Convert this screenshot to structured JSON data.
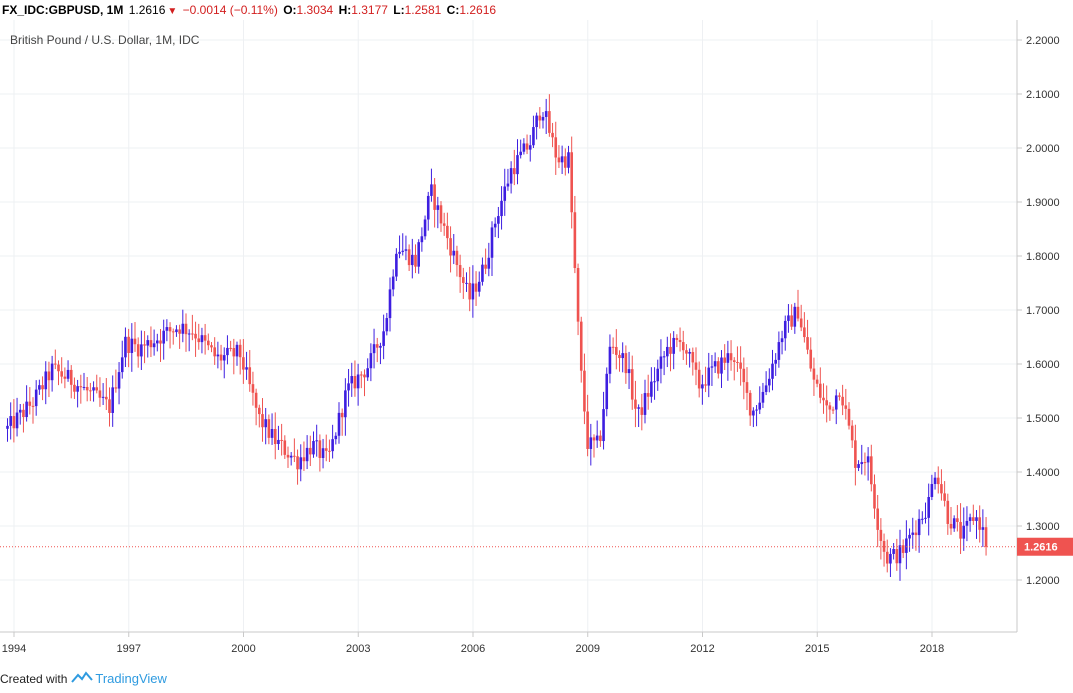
{
  "header": {
    "symbol": "FX_IDC:GBPUSD, 1M",
    "last": "1.2616",
    "change": "−0.0014 (−0.11%)",
    "open_label": "O:",
    "open": "1.3034",
    "high_label": "H:",
    "high": "1.3177",
    "low_label": "L:",
    "low": "1.2581",
    "close_label": "C:",
    "close": "1.2616"
  },
  "chart_data": {
    "type": "candlestick",
    "title": "British Pound / U.S. Dollar, 1M, IDC",
    "xlabel": "",
    "ylabel": "",
    "x_range": [
      1993.83,
      2019.42
    ],
    "ylim": [
      1.11,
      2.225
    ],
    "y_ticks": [
      "2.2000",
      "2.1000",
      "2.0000",
      "1.9000",
      "1.8000",
      "1.7000",
      "1.6000",
      "1.5000",
      "1.4000",
      "1.3000",
      "1.2000"
    ],
    "x_ticks": [
      "1994",
      "1997",
      "2000",
      "2003",
      "2006",
      "2009",
      "2012",
      "2015",
      "2018"
    ],
    "grid": true,
    "last_price": 1.2616,
    "last_price_label": "1.2616",
    "up_color": "#3d1ee0",
    "down_color": "#ef5350",
    "close_path": [
      [
        1993.83,
        1.48
      ],
      [
        1994.5,
        1.53
      ],
      [
        1995.0,
        1.59
      ],
      [
        1995.5,
        1.57
      ],
      [
        1995.9,
        1.55
      ],
      [
        1996.5,
        1.52
      ],
      [
        1996.9,
        1.64
      ],
      [
        1997.3,
        1.63
      ],
      [
        1997.8,
        1.65
      ],
      [
        1998.3,
        1.67
      ],
      [
        1998.7,
        1.66
      ],
      [
        1999.3,
        1.61
      ],
      [
        1999.9,
        1.62
      ],
      [
        2000.4,
        1.5
      ],
      [
        2000.8,
        1.46
      ],
      [
        2001.4,
        1.42
      ],
      [
        2001.8,
        1.45
      ],
      [
        2002.2,
        1.42
      ],
      [
        2002.7,
        1.55
      ],
      [
        2003.3,
        1.6
      ],
      [
        2003.7,
        1.67
      ],
      [
        2004.0,
        1.82
      ],
      [
        2004.5,
        1.79
      ],
      [
        2004.9,
        1.92
      ],
      [
        2005.4,
        1.82
      ],
      [
        2005.9,
        1.72
      ],
      [
        2006.3,
        1.78
      ],
      [
        2006.6,
        1.87
      ],
      [
        2007.0,
        1.96
      ],
      [
        2007.5,
        2.01
      ],
      [
        2007.8,
        2.08
      ],
      [
        2008.2,
        1.98
      ],
      [
        2008.5,
        1.98
      ],
      [
        2008.8,
        1.6
      ],
      [
        2009.0,
        1.45
      ],
      [
        2009.3,
        1.45
      ],
      [
        2009.6,
        1.64
      ],
      [
        2010.0,
        1.6
      ],
      [
        2010.3,
        1.5
      ],
      [
        2010.6,
        1.55
      ],
      [
        2011.1,
        1.63
      ],
      [
        2011.5,
        1.64
      ],
      [
        2011.9,
        1.56
      ],
      [
        2012.3,
        1.59
      ],
      [
        2012.8,
        1.62
      ],
      [
        2013.3,
        1.51
      ],
      [
        2013.6,
        1.55
      ],
      [
        2014.1,
        1.66
      ],
      [
        2014.5,
        1.7
      ],
      [
        2014.9,
        1.57
      ],
      [
        2015.3,
        1.51
      ],
      [
        2015.6,
        1.56
      ],
      [
        2016.0,
        1.42
      ],
      [
        2016.3,
        1.43
      ],
      [
        2016.6,
        1.3
      ],
      [
        2016.8,
        1.24
      ],
      [
        2017.2,
        1.25
      ],
      [
        2017.5,
        1.29
      ],
      [
        2017.9,
        1.34
      ],
      [
        2018.1,
        1.41
      ],
      [
        2018.4,
        1.32
      ],
      [
        2018.8,
        1.28
      ],
      [
        2019.1,
        1.32
      ],
      [
        2019.3,
        1.3
      ],
      [
        2019.42,
        1.2616
      ]
    ]
  },
  "footer": {
    "created_with": "Created with",
    "brand": "TradingView"
  }
}
